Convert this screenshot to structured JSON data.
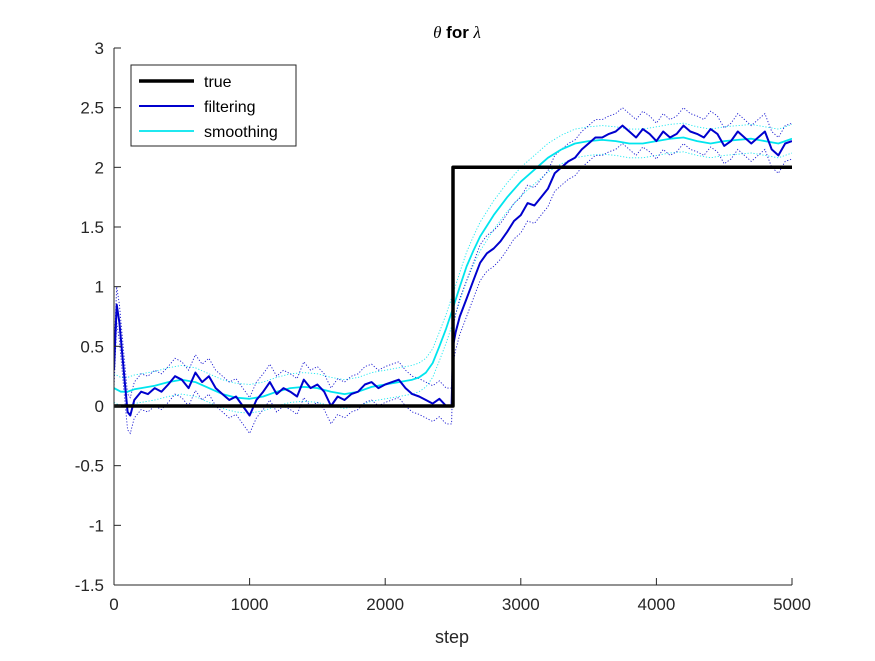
{
  "chart_data": {
    "type": "line",
    "title_symbol": "θ",
    "title_middle": " for ",
    "title_symbol2": "λ",
    "xlabel": "step",
    "ylabel": "",
    "xlim": [
      0,
      5000
    ],
    "ylim": [
      -1.5,
      3
    ],
    "xticks": [
      0,
      1000,
      2000,
      3000,
      4000,
      5000
    ],
    "yticks": [
      -1.5,
      -1,
      -0.5,
      0,
      0.5,
      1,
      1.5,
      2,
      2.5,
      3
    ],
    "xtick_labels": [
      "0",
      "1000",
      "2000",
      "3000",
      "4000",
      "5000"
    ],
    "ytick_labels": [
      "-1.5",
      "-1",
      "-0.5",
      "0",
      "0.5",
      "1",
      "1.5",
      "2",
      "2.5",
      "3"
    ],
    "grid": false,
    "legend_position": "top-left",
    "series": [
      {
        "name": "true",
        "color": "#000000",
        "x": [
          0,
          2500,
          2500,
          5000
        ],
        "y": [
          0,
          0,
          2,
          2
        ]
      },
      {
        "name": "filtering",
        "color": "#0000cd",
        "x": [
          0,
          20,
          40,
          60,
          80,
          100,
          120,
          150,
          200,
          250,
          300,
          350,
          400,
          450,
          500,
          550,
          600,
          650,
          700,
          750,
          800,
          850,
          900,
          950,
          1000,
          1050,
          1100,
          1150,
          1200,
          1250,
          1300,
          1350,
          1400,
          1450,
          1500,
          1550,
          1600,
          1650,
          1700,
          1750,
          1800,
          1850,
          1900,
          1950,
          2000,
          2050,
          2100,
          2150,
          2200,
          2250,
          2300,
          2350,
          2400,
          2450,
          2490,
          2500,
          2520,
          2550,
          2600,
          2650,
          2700,
          2750,
          2800,
          2850,
          2900,
          2950,
          3000,
          3050,
          3100,
          3150,
          3200,
          3250,
          3300,
          3350,
          3400,
          3450,
          3500,
          3550,
          3600,
          3650,
          3700,
          3750,
          3800,
          3850,
          3900,
          3950,
          4000,
          4050,
          4100,
          4150,
          4200,
          4250,
          4300,
          4350,
          4400,
          4450,
          4500,
          4550,
          4600,
          4650,
          4700,
          4750,
          4800,
          4850,
          4900,
          4950,
          5000
        ],
        "y": [
          0.3,
          0.85,
          0.7,
          0.45,
          0.2,
          -0.05,
          -0.08,
          0.05,
          0.12,
          0.1,
          0.15,
          0.12,
          0.18,
          0.25,
          0.22,
          0.15,
          0.28,
          0.2,
          0.25,
          0.15,
          0.1,
          0.05,
          0.08,
          0.0,
          -0.08,
          0.05,
          0.12,
          0.2,
          0.1,
          0.15,
          0.12,
          0.08,
          0.22,
          0.15,
          0.18,
          0.12,
          0.0,
          0.08,
          0.05,
          0.1,
          0.12,
          0.18,
          0.2,
          0.15,
          0.18,
          0.2,
          0.22,
          0.15,
          0.1,
          0.08,
          0.05,
          0.02,
          0.06,
          0.0,
          0.0,
          0.5,
          0.62,
          0.75,
          0.9,
          1.05,
          1.2,
          1.28,
          1.32,
          1.38,
          1.46,
          1.55,
          1.6,
          1.7,
          1.68,
          1.75,
          1.82,
          1.95,
          2.0,
          2.05,
          2.08,
          2.15,
          2.2,
          2.25,
          2.25,
          2.28,
          2.3,
          2.35,
          2.3,
          2.25,
          2.32,
          2.28,
          2.22,
          2.3,
          2.25,
          2.28,
          2.35,
          2.3,
          2.28,
          2.25,
          2.32,
          2.28,
          2.18,
          2.22,
          2.3,
          2.25,
          2.2,
          2.25,
          2.3,
          2.15,
          2.1,
          2.2,
          2.22
        ]
      },
      {
        "name": "smoothing",
        "color": "#00e5ee",
        "x": [
          0,
          50,
          100,
          150,
          200,
          300,
          400,
          500,
          600,
          700,
          800,
          900,
          1000,
          1100,
          1200,
          1300,
          1400,
          1500,
          1600,
          1700,
          1800,
          1900,
          2000,
          2100,
          2200,
          2250,
          2300,
          2350,
          2400,
          2450,
          2500,
          2550,
          2600,
          2650,
          2700,
          2800,
          2900,
          3000,
          3100,
          3200,
          3300,
          3400,
          3500,
          3600,
          3700,
          3800,
          3900,
          4000,
          4100,
          4200,
          4300,
          4400,
          4500,
          4600,
          4700,
          4800,
          4900,
          5000
        ],
        "y": [
          0.15,
          0.12,
          0.12,
          0.14,
          0.15,
          0.17,
          0.2,
          0.22,
          0.2,
          0.15,
          0.1,
          0.07,
          0.06,
          0.08,
          0.12,
          0.15,
          0.16,
          0.15,
          0.12,
          0.1,
          0.12,
          0.16,
          0.18,
          0.2,
          0.22,
          0.24,
          0.28,
          0.36,
          0.5,
          0.65,
          0.82,
          1.0,
          1.17,
          1.3,
          1.42,
          1.6,
          1.75,
          1.88,
          1.98,
          2.08,
          2.15,
          2.2,
          2.22,
          2.23,
          2.22,
          2.2,
          2.2,
          2.22,
          2.24,
          2.25,
          2.22,
          2.2,
          2.22,
          2.23,
          2.24,
          2.22,
          2.2,
          2.24
        ]
      }
    ]
  }
}
